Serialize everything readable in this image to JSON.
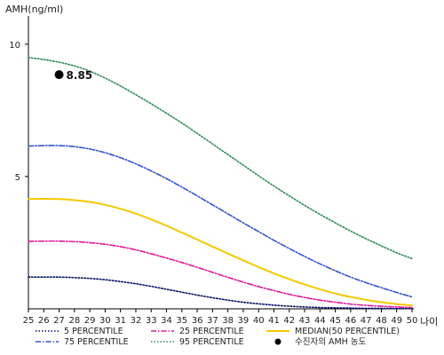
{
  "chart_data": {
    "type": "line",
    "title": "",
    "ylabel": "AMH(ng/ml)",
    "xlabel": "나이",
    "ylim": [
      0,
      11
    ],
    "xlim": [
      25,
      50
    ],
    "y_ticks": [
      5,
      10
    ],
    "x": [
      25,
      26,
      27,
      28,
      29,
      30,
      31,
      32,
      33,
      34,
      35,
      36,
      37,
      38,
      39,
      40,
      41,
      42,
      43,
      44,
      45,
      46,
      47,
      48,
      49,
      50
    ],
    "series": [
      {
        "name": "5 PERCENTILE",
        "color": "#001166",
        "dash": "dotted",
        "values": [
          1.2,
          1.2,
          1.2,
          1.18,
          1.15,
          1.1,
          1.03,
          0.95,
          0.85,
          0.74,
          0.63,
          0.52,
          0.42,
          0.33,
          0.25,
          0.19,
          0.14,
          0.1,
          0.07,
          0.05,
          0.04,
          0.03,
          0.02,
          0.02,
          0.01,
          0.01
        ]
      },
      {
        "name": "25 PERCENTILE",
        "color": "#e0179a",
        "dash": "dashdot",
        "values": [
          2.55,
          2.56,
          2.56,
          2.54,
          2.5,
          2.44,
          2.35,
          2.23,
          2.08,
          1.92,
          1.75,
          1.57,
          1.38,
          1.19,
          1.01,
          0.84,
          0.69,
          0.55,
          0.43,
          0.33,
          0.25,
          0.18,
          0.13,
          0.1,
          0.07,
          0.05
        ]
      },
      {
        "name": "MEDIAN(50 PERCENTILE)",
        "color": "#f5c800",
        "dash": "solid",
        "values": [
          4.15,
          4.16,
          4.15,
          4.11,
          4.04,
          3.93,
          3.78,
          3.6,
          3.38,
          3.14,
          2.88,
          2.62,
          2.35,
          2.09,
          1.83,
          1.58,
          1.34,
          1.12,
          0.92,
          0.74,
          0.58,
          0.45,
          0.34,
          0.25,
          0.18,
          0.13
        ]
      },
      {
        "name": "75 PERCENTILE",
        "color": "#3355cc",
        "dash": "dashdot",
        "values": [
          6.15,
          6.17,
          6.17,
          6.13,
          6.04,
          5.9,
          5.71,
          5.48,
          5.21,
          4.92,
          4.6,
          4.27,
          3.93,
          3.59,
          3.25,
          2.92,
          2.59,
          2.28,
          1.98,
          1.7,
          1.44,
          1.2,
          0.99,
          0.8,
          0.62,
          0.45
        ]
      },
      {
        "name": "95 PERCENTILE",
        "color": "#2e8b57",
        "dash": "dotted",
        "values": [
          9.5,
          9.42,
          9.32,
          9.18,
          8.98,
          8.72,
          8.42,
          8.09,
          7.75,
          7.39,
          7.02,
          6.63,
          6.23,
          5.83,
          5.43,
          5.03,
          4.64,
          4.27,
          3.91,
          3.57,
          3.25,
          2.94,
          2.65,
          2.38,
          2.12,
          1.9
        ]
      }
    ],
    "points": [
      {
        "name": "수진자의 AMH 농도",
        "x": 27,
        "y": 8.85,
        "label": "8.85",
        "color": "#000000"
      }
    ],
    "grid": false,
    "legend_position": "bottom"
  }
}
